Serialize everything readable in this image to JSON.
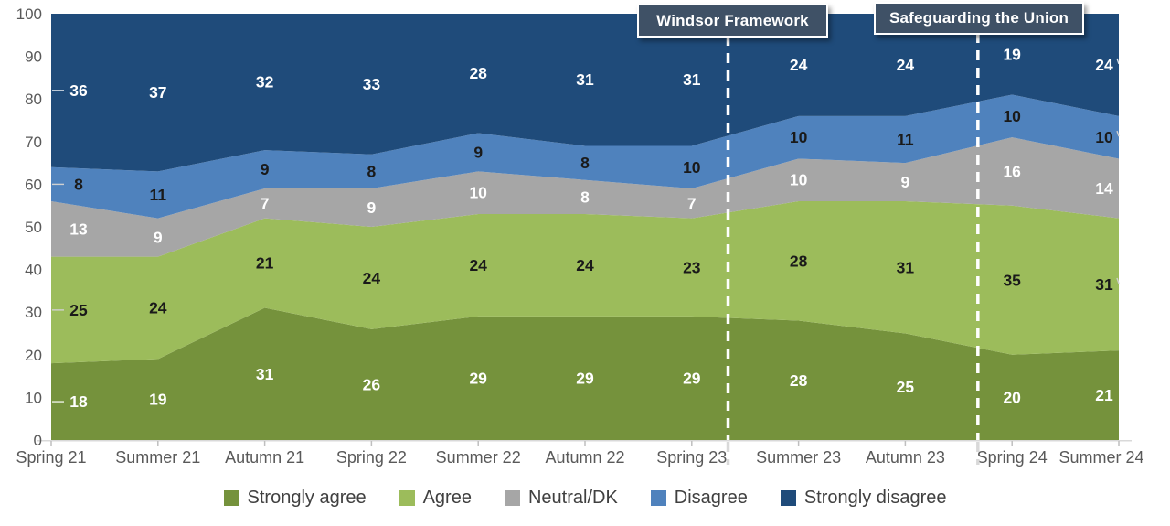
{
  "chart_data": {
    "type": "area",
    "stacked": true,
    "title": "",
    "xlabel": "",
    "ylabel": "",
    "ylim": [
      0,
      100
    ],
    "y_ticks": [
      0,
      10,
      20,
      30,
      40,
      50,
      60,
      70,
      80,
      90,
      100
    ],
    "grid": false,
    "legend_position": "bottom",
    "categories": [
      "Spring 21",
      "Summer 21",
      "Autumn 21",
      "Spring 22",
      "Summer 22",
      "Autumn 22",
      "Spring 23",
      "Summer 23",
      "Autumn 23",
      "Spring 24",
      "Summer 24"
    ],
    "series": [
      {
        "name": "Strongly agree",
        "color": "#75923C",
        "label_color": "#FFFFFF",
        "values": [
          18,
          19,
          31,
          26,
          29,
          29,
          29,
          28,
          25,
          20,
          21
        ]
      },
      {
        "name": "Agree",
        "color": "#9CBC5B",
        "label_color": "#1A1A1A",
        "values": [
          25,
          24,
          21,
          24,
          24,
          24,
          23,
          28,
          31,
          35,
          31
        ]
      },
      {
        "name": "Neutral/DK",
        "color": "#A6A6A6",
        "label_color": "#FFFFFF",
        "values": [
          13,
          9,
          7,
          9,
          10,
          8,
          7,
          10,
          9,
          16,
          14
        ]
      },
      {
        "name": "Disagree",
        "color": "#4F82BD",
        "label_color": "#1A1A1A",
        "values": [
          8,
          11,
          9,
          8,
          9,
          8,
          10,
          10,
          11,
          10,
          10
        ]
      },
      {
        "name": "Strongly disagree",
        "color": "#1F4B7A",
        "label_color": "#FFFFFF",
        "values": [
          36,
          37,
          32,
          33,
          28,
          31,
          31,
          24,
          24,
          19,
          24
        ]
      }
    ],
    "annotations": [
      {
        "label": "Windsor Framework",
        "x_between": [
          "Spring 23",
          "Summer 23"
        ],
        "x_fraction": 0.34
      },
      {
        "label": "Safeguarding the Union",
        "x_between": [
          "Autumn 23",
          "Spring 24"
        ],
        "x_fraction": 0.68
      }
    ]
  },
  "colors": {
    "axis_text": "#595959",
    "legend_text": "#404040",
    "axis_line": "#D9D9D9",
    "tick_mark": "#BFBFBF",
    "annotation_bg": "#3F5166",
    "annotation_text": "#FFFFFF",
    "dashed_line": "#FFFFFF"
  }
}
